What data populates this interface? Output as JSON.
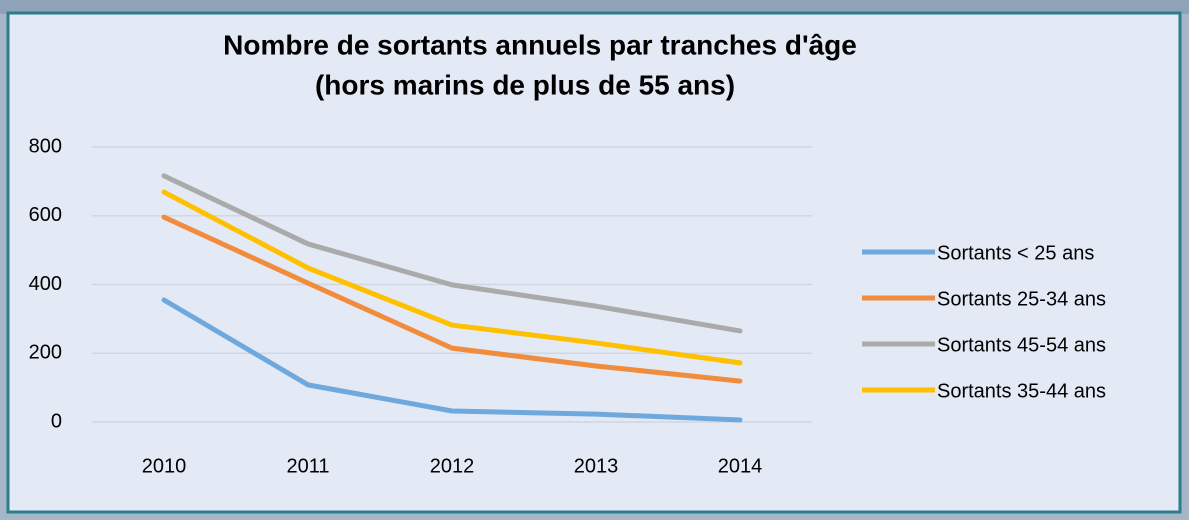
{
  "chart_data": {
    "type": "line",
    "title": "Nombre de sortants annuels par tranches d'âge",
    "subtitle": "(hors marins de plus de 55 ans)",
    "categories": [
      "2010",
      "2011",
      "2012",
      "2013",
      "2014"
    ],
    "series": [
      {
        "name": "Sortants < 25 ans",
        "color": "#6fa8dc",
        "values": [
          355,
          108,
          32,
          23,
          6
        ]
      },
      {
        "name": "Sortants 25-34 ans",
        "color": "#f08c3c",
        "values": [
          596,
          404,
          215,
          163,
          119
        ]
      },
      {
        "name": "Sortants 45-54 ans",
        "color": "#aaaaaa",
        "values": [
          716,
          518,
          399,
          337,
          265
        ]
      },
      {
        "name": "Sortants 35-44 ans",
        "color": "#ffc000",
        "values": [
          669,
          448,
          282,
          230,
          172
        ]
      }
    ],
    "ylim": [
      0,
      800
    ],
    "yticks": [
      0,
      200,
      400,
      600,
      800
    ],
    "grid": true,
    "legend": "right"
  }
}
